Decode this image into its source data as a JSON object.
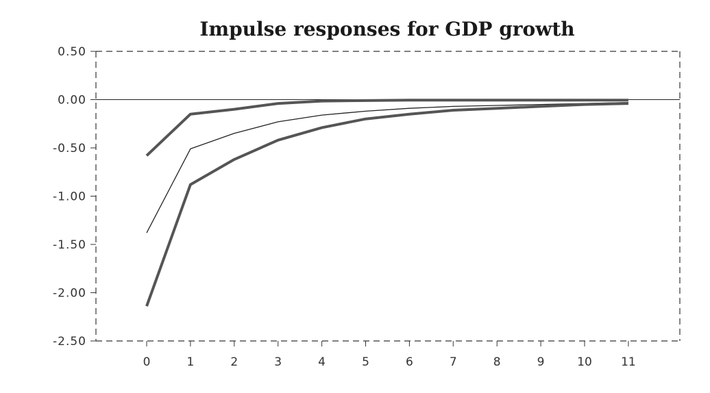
{
  "chart_data": {
    "type": "line",
    "title": "Impulse responses for GDP growth",
    "xlabel": "",
    "ylabel": "",
    "x": [
      0,
      1,
      2,
      3,
      4,
      5,
      6,
      7,
      8,
      9,
      10,
      11
    ],
    "xlim": [
      0,
      11
    ],
    "ylim": [
      -2.5,
      0.5
    ],
    "yticks": [
      0.5,
      0.0,
      -0.5,
      -1.0,
      -1.5,
      -2.0,
      -2.5
    ],
    "ytick_labels": [
      "0.50",
      "0.00",
      "-0.50",
      "-1.00",
      "-1.50",
      "-2.00",
      "-2.50"
    ],
    "xtick_labels": [
      "0",
      "1",
      "2",
      "3",
      "4",
      "5",
      "6",
      "7",
      "8",
      "9",
      "10",
      "11"
    ],
    "zero_line": true,
    "grid": false,
    "frame": "dashed",
    "series": [
      {
        "role": "upper-band",
        "style": "thick",
        "color": "#555555",
        "values": [
          -0.58,
          -0.15,
          -0.1,
          -0.04,
          -0.015,
          -0.01,
          -0.005,
          -0.005,
          -0.005,
          -0.005,
          -0.005,
          -0.005
        ]
      },
      {
        "role": "point-estimate",
        "style": "thin",
        "color": "#222222",
        "values": [
          -1.38,
          -0.51,
          -0.35,
          -0.23,
          -0.16,
          -0.12,
          -0.09,
          -0.07,
          -0.06,
          -0.05,
          -0.04,
          -0.03
        ]
      },
      {
        "role": "lower-band",
        "style": "thick",
        "color": "#555555",
        "values": [
          -2.14,
          -0.88,
          -0.62,
          -0.42,
          -0.29,
          -0.2,
          -0.15,
          -0.11,
          -0.09,
          -0.07,
          -0.05,
          -0.04
        ]
      }
    ]
  }
}
